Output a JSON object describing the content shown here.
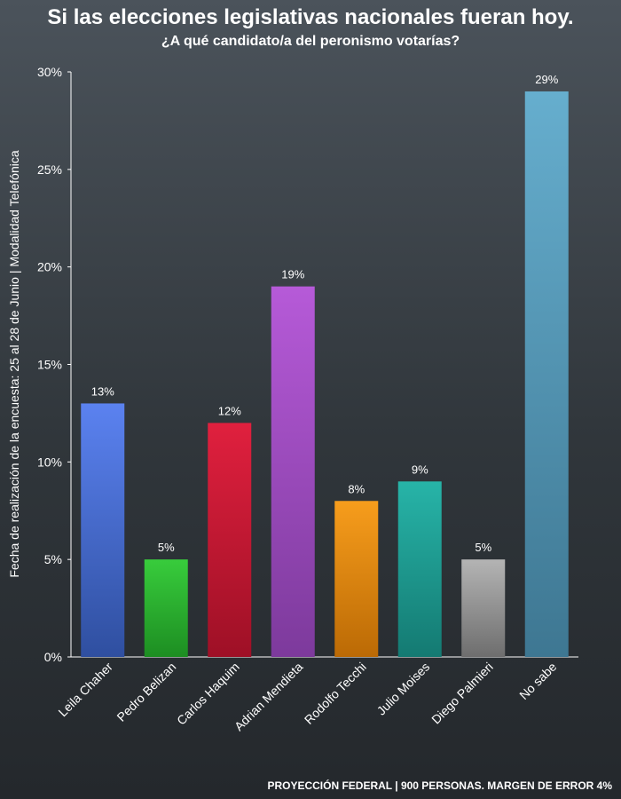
{
  "title": "Si las elecciones legislativas nacionales fueran hoy.",
  "subtitle": "¿A qué candidato/a del peronismo votarías?",
  "side_label": "Fecha de realización de la encuesta: 25 al 28 de Junio  |  Modalidad Telefónica",
  "footer": "PROYECCIÓN FEDERAL | 900 PERSONAS. MARGEN DE ERROR 4%",
  "chart_data": {
    "type": "bar",
    "categories": [
      "Leila Chaher",
      "Pedro Belizan",
      "Carlos Haquim",
      "Adrian Mendieta",
      "Rodolfo Tecchi",
      "Julio Moises",
      "Diego Palmieri",
      "No sabe"
    ],
    "values": [
      13,
      5,
      12,
      19,
      8,
      9,
      5,
      29
    ],
    "data_labels": [
      "13%",
      "5%",
      "12%",
      "19%",
      "8%",
      "9%",
      "5%",
      "29%"
    ],
    "colors": [
      [
        "#5b82f0",
        "#2f4fa0"
      ],
      [
        "#38cc3c",
        "#1d8e22"
      ],
      [
        "#e0203e",
        "#9e1026"
      ],
      [
        "#b65ad8",
        "#7d3a9c"
      ],
      [
        "#f79d1c",
        "#bb6a05"
      ],
      [
        "#27b4a8",
        "#147a72"
      ],
      [
        "#b4b4b4",
        "#6e6e6e"
      ],
      [
        "#66aece",
        "#3e7792"
      ]
    ],
    "ylim": [
      0,
      30
    ],
    "yticks": [
      0,
      5,
      10,
      15,
      20,
      25,
      30
    ],
    "ytick_labels": [
      "0%",
      "5%",
      "10%",
      "15%",
      "20%",
      "25%",
      "30%"
    ],
    "grid": false
  }
}
